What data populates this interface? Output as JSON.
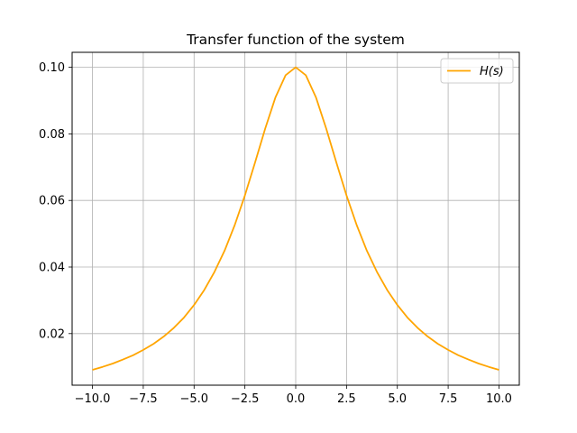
{
  "chart_data": {
    "type": "line",
    "title": "Transfer function of the system",
    "xlabel": "",
    "ylabel": "",
    "xlim": [
      -11,
      11
    ],
    "ylim": [
      0.0045,
      0.1045
    ],
    "x_ticks": [
      -10.0,
      -7.5,
      -5.0,
      -2.5,
      0.0,
      2.5,
      5.0,
      7.5,
      10.0
    ],
    "x_tick_labels": [
      "−10.0",
      "−7.5",
      "−5.0",
      "−2.5",
      "0.0",
      "2.5",
      "5.0",
      "7.5",
      "10.0"
    ],
    "y_ticks": [
      0.02,
      0.04,
      0.06,
      0.08,
      0.1
    ],
    "y_tick_labels": [
      "0.02",
      "0.04",
      "0.06",
      "0.08",
      "0.10"
    ],
    "grid": true,
    "legend_placement": "top-right",
    "series": [
      {
        "name": "H(s)",
        "color": "#ffa500",
        "x": [
          -10,
          -9.5,
          -9,
          -8.5,
          -8,
          -7.5,
          -7,
          -6.5,
          -6,
          -5.5,
          -5,
          -4.5,
          -4,
          -3.5,
          -3,
          -2.5,
          -2,
          -1.5,
          -1,
          -0.5,
          0,
          0.5,
          1,
          1.5,
          2,
          2.5,
          3,
          3.5,
          4,
          4.5,
          5,
          5.5,
          6,
          6.5,
          7,
          7.5,
          8,
          8.5,
          9,
          9.5,
          10
        ],
        "y": [
          0.0091,
          0.01,
          0.011,
          0.0122,
          0.0135,
          0.0151,
          0.0169,
          0.0191,
          0.0217,
          0.0248,
          0.0286,
          0.0331,
          0.0385,
          0.0449,
          0.0526,
          0.0615,
          0.0714,
          0.0816,
          0.0909,
          0.0976,
          0.1,
          0.0976,
          0.0909,
          0.0816,
          0.0714,
          0.0615,
          0.0526,
          0.0449,
          0.0385,
          0.0331,
          0.0286,
          0.0248,
          0.0217,
          0.0191,
          0.0169,
          0.0151,
          0.0135,
          0.0122,
          0.011,
          0.01,
          0.0091
        ]
      }
    ]
  }
}
